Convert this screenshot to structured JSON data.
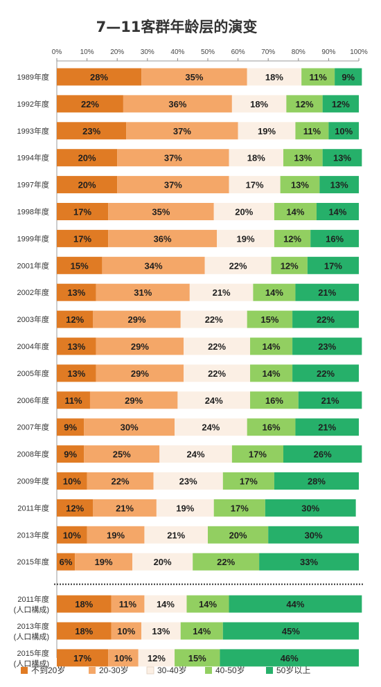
{
  "chart_data": {
    "type": "bar",
    "stacked": true,
    "orientation": "horizontal",
    "title": "7—11客群年龄层的演变",
    "x_ticks": [
      "0%",
      "10%",
      "20%",
      "30%",
      "40%",
      "50%",
      "60%",
      "70%",
      "80%",
      "90%",
      "100%"
    ],
    "xlim": [
      0,
      100
    ],
    "legend_position": "bottom",
    "categories": [
      [
        "1989年度"
      ],
      [
        "1992年度"
      ],
      [
        "1993年度"
      ],
      [
        "1994年度"
      ],
      [
        "1997年度"
      ],
      [
        "1998年度"
      ],
      [
        "1999年度"
      ],
      [
        "2001年度"
      ],
      [
        "2002年度"
      ],
      [
        "2003年度"
      ],
      [
        "2004年度"
      ],
      [
        "2005年度"
      ],
      [
        "2006年度"
      ],
      [
        "2007年度"
      ],
      [
        "2008年度"
      ],
      [
        "2009年度"
      ],
      [
        "2011年度"
      ],
      [
        "2013年度"
      ],
      [
        "2015年度"
      ],
      [
        "2011年度",
        "(人口構成)"
      ],
      [
        "2013年度",
        "(人口構成)"
      ],
      [
        "2015年度",
        "(人口構成)"
      ]
    ],
    "series": [
      {
        "name": "不到20岁",
        "color": "#e07b24",
        "values": [
          28,
          22,
          23,
          20,
          20,
          17,
          17,
          15,
          13,
          12,
          13,
          13,
          11,
          9,
          9,
          10,
          12,
          10,
          6,
          18,
          18,
          17
        ]
      },
      {
        "name": "20-30岁",
        "color": "#f4a768",
        "values": [
          35,
          36,
          37,
          37,
          37,
          35,
          36,
          34,
          31,
          29,
          29,
          29,
          29,
          30,
          25,
          22,
          21,
          19,
          19,
          11,
          10,
          10
        ]
      },
      {
        "name": "30-40岁",
        "color": "#fbefe4",
        "values": [
          18,
          18,
          19,
          18,
          17,
          20,
          19,
          22,
          21,
          22,
          22,
          22,
          24,
          24,
          24,
          23,
          19,
          21,
          20,
          14,
          13,
          12
        ]
      },
      {
        "name": "40-50岁",
        "color": "#92cf61",
        "values": [
          11,
          12,
          11,
          13,
          13,
          14,
          12,
          12,
          14,
          15,
          14,
          14,
          16,
          16,
          17,
          17,
          17,
          20,
          22,
          14,
          14,
          15
        ]
      },
      {
        "name": "50岁以上",
        "color": "#26b06a",
        "values": [
          9,
          12,
          10,
          13,
          13,
          14,
          16,
          17,
          21,
          22,
          23,
          22,
          21,
          21,
          26,
          28,
          30,
          30,
          33,
          44,
          45,
          46
        ]
      }
    ]
  }
}
